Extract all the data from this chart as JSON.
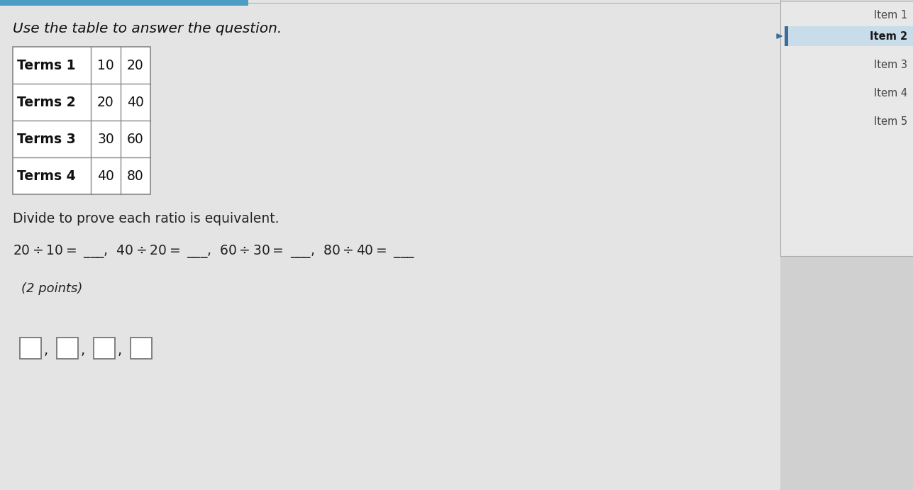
{
  "bg_color": "#c8c8c8",
  "main_bg": "#e4e4e4",
  "sidebar_bg": "#d0d0d0",
  "sidebar_panel_bg": "#e8e8e8",
  "title_text": "Use the table to answer the question.",
  "table_rows": [
    {
      "label": "Terms 1",
      "col1": "10",
      "col2": "20"
    },
    {
      "label": "Terms 2",
      "col1": "20",
      "col2": "40"
    },
    {
      "label": "Terms 3",
      "col1": "30",
      "col2": "60"
    },
    {
      "label": "Terms 4",
      "col1": "40",
      "col2": "80"
    }
  ],
  "divide_text": "Divide to prove each ratio is equivalent.",
  "points_text": "(2 points)",
  "sidebar_items": [
    "Item 1",
    "Item 2",
    "Item 3",
    "Item 4",
    "Item 5"
  ],
  "sidebar_item2_bg": "#c8dcea",
  "sidebar_border_color": "#3a6e9e",
  "top_bar_color": "#4d9ec5",
  "table_border_color": "#888888",
  "label_font_color": "#111111",
  "body_font_color": "#222222",
  "sidebar_text_color": "#444444"
}
